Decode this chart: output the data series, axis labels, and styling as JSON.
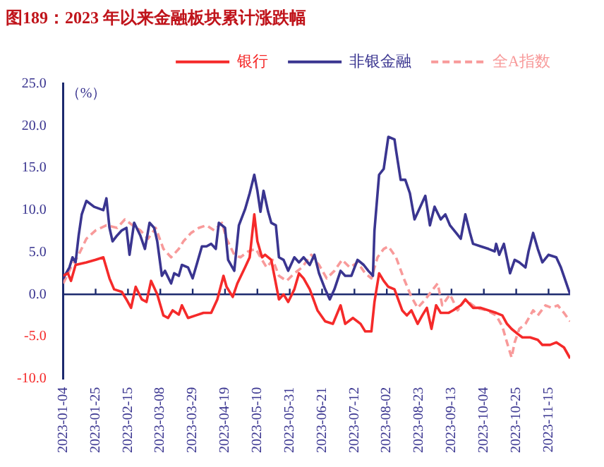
{
  "chart_data": {
    "type": "line",
    "title": "图189：2023 年以来金融板块累计涨跌幅",
    "ylabel": "（%）",
    "xlim": [
      "2023-01-04",
      "2023-11-29"
    ],
    "xticks": [
      "2023-01-04",
      "2023-01-25",
      "2023-02-15",
      "2023-03-08",
      "2023-03-29",
      "2023-04-19",
      "2023-05-10",
      "2023-05-31",
      "2023-06-21",
      "2023-07-12",
      "2023-08-02",
      "2023-08-23",
      "2023-09-13",
      "2023-10-04",
      "2023-10-25",
      "2023-11-15"
    ],
    "ylim": [
      -10,
      25
    ],
    "yticks": [
      {
        "value": -10,
        "label": "-10.0"
      },
      {
        "value": -5,
        "label": "-5.0"
      },
      {
        "value": 0,
        "label": "0.0"
      },
      {
        "value": 5,
        "label": "5.0"
      },
      {
        "value": 10,
        "label": "10.0"
      },
      {
        "value": 15,
        "label": "15.0"
      },
      {
        "value": 20,
        "label": "20.0"
      },
      {
        "value": 25,
        "label": "25.0"
      }
    ],
    "grid": false,
    "legend": "top",
    "marker": "none",
    "ref_lines": [
      {
        "axis": "y",
        "value": 0,
        "color": "#1c2a6e"
      }
    ],
    "series": [
      {
        "name": "银行",
        "color": "#f52a2a",
        "line_style": "solid",
        "x": [
          "2023-01-04",
          "2023-01-07",
          "2023-01-09",
          "2023-01-12",
          "2023-01-19",
          "2023-01-25",
          "2023-01-30",
          "2023-02-03",
          "2023-02-06",
          "2023-02-11",
          "2023-02-14",
          "2023-02-17",
          "2023-02-20",
          "2023-02-24",
          "2023-02-27",
          "2023-03-02",
          "2023-03-06",
          "2023-03-10",
          "2023-03-13",
          "2023-03-16",
          "2023-03-20",
          "2023-03-22",
          "2023-03-26",
          "2023-03-31",
          "2023-04-05",
          "2023-04-10",
          "2023-04-14",
          "2023-04-18",
          "2023-04-20",
          "2023-04-24",
          "2023-04-27",
          "2023-05-02",
          "2023-05-05",
          "2023-05-08",
          "2023-05-10",
          "2023-05-13",
          "2023-05-15",
          "2023-05-19",
          "2023-05-24",
          "2023-05-27",
          "2023-05-30",
          "2023-06-03",
          "2023-06-06",
          "2023-06-09",
          "2023-06-13",
          "2023-06-18",
          "2023-06-23",
          "2023-06-28",
          "2023-07-03",
          "2023-07-06",
          "2023-07-11",
          "2023-07-16",
          "2023-07-19",
          "2023-07-23",
          "2023-07-25",
          "2023-07-28",
          "2023-07-31",
          "2023-08-03",
          "2023-08-07",
          "2023-08-12",
          "2023-08-15",
          "2023-08-18",
          "2023-08-22",
          "2023-08-25",
          "2023-08-28",
          "2023-08-31",
          "2023-09-03",
          "2023-09-06",
          "2023-09-11",
          "2023-09-14",
          "2023-09-19",
          "2023-09-22",
          "2023-09-27",
          "2023-10-02",
          "2023-10-07",
          "2023-10-12",
          "2023-10-16",
          "2023-10-19",
          "2023-10-22",
          "2023-10-26",
          "2023-10-29",
          "2023-11-03",
          "2023-11-08",
          "2023-11-11",
          "2023-11-16",
          "2023-11-20",
          "2023-11-25",
          "2023-11-29"
        ],
        "values": [
          2.2,
          2.5,
          1.6,
          3.5,
          3.8,
          4.1,
          4.4,
          1.9,
          0.6,
          0.3,
          -0.6,
          -1.6,
          0.9,
          -0.6,
          -0.9,
          1.6,
          0.0,
          -2.5,
          -2.8,
          -1.9,
          -2.4,
          -1.3,
          -2.8,
          -2.5,
          -2.2,
          -2.2,
          -0.6,
          2.2,
          0.9,
          -0.3,
          1.3,
          3.2,
          4.4,
          9.5,
          6.3,
          4.4,
          4.7,
          4.1,
          -0.6,
          0.0,
          -0.9,
          0.6,
          2.5,
          1.9,
          0.6,
          -1.9,
          -3.2,
          -3.5,
          -1.3,
          -3.5,
          -2.8,
          -3.5,
          -4.4,
          -4.4,
          -0.9,
          2.5,
          1.6,
          0.9,
          0.6,
          -1.9,
          -2.5,
          -1.9,
          -3.5,
          -2.5,
          -1.6,
          -4.1,
          -1.3,
          -2.2,
          -2.2,
          -1.9,
          -1.3,
          -0.6,
          -1.6,
          -1.6,
          -1.9,
          -2.2,
          -2.5,
          -3.5,
          -4.1,
          -4.7,
          -5.1,
          -5.1,
          -5.4,
          -6.0,
          -6.0,
          -5.7,
          -6.3,
          -7.6
        ]
      },
      {
        "name": "非银金融",
        "color": "#3a3590",
        "line_style": "solid",
        "x": [
          "2023-01-04",
          "2023-01-08",
          "2023-01-10",
          "2023-01-12",
          "2023-01-14",
          "2023-01-16",
          "2023-01-19",
          "2023-01-24",
          "2023-01-30",
          "2023-02-01",
          "2023-02-03",
          "2023-02-05",
          "2023-02-08",
          "2023-02-11",
          "2023-02-14",
          "2023-02-16",
          "2023-02-19",
          "2023-02-23",
          "2023-02-26",
          "2023-03-01",
          "2023-03-04",
          "2023-03-06",
          "2023-03-09",
          "2023-03-11",
          "2023-03-15",
          "2023-03-17",
          "2023-03-20",
          "2023-03-22",
          "2023-03-26",
          "2023-03-29",
          "2023-04-01",
          "2023-04-04",
          "2023-04-07",
          "2023-04-10",
          "2023-04-13",
          "2023-04-15",
          "2023-04-19",
          "2023-04-21",
          "2023-04-25",
          "2023-04-28",
          "2023-05-02",
          "2023-05-05",
          "2023-05-08",
          "2023-05-10",
          "2023-05-12",
          "2023-05-14",
          "2023-05-17",
          "2023-05-19",
          "2023-05-22",
          "2023-05-24",
          "2023-05-27",
          "2023-05-30",
          "2023-06-03",
          "2023-06-06",
          "2023-06-09",
          "2023-06-13",
          "2023-06-16",
          "2023-06-19",
          "2023-06-23",
          "2023-06-26",
          "2023-06-29",
          "2023-07-03",
          "2023-07-06",
          "2023-07-10",
          "2023-07-14",
          "2023-07-18",
          "2023-07-21",
          "2023-07-24",
          "2023-07-25",
          "2023-07-28",
          "2023-07-31",
          "2023-08-03",
          "2023-08-07",
          "2023-08-08",
          "2023-08-11",
          "2023-08-14",
          "2023-08-17",
          "2023-08-20",
          "2023-08-23",
          "2023-08-27",
          "2023-08-30",
          "2023-09-02",
          "2023-09-06",
          "2023-09-09",
          "2023-09-12",
          "2023-09-16",
          "2023-09-19",
          "2023-09-22",
          "2023-09-25",
          "2023-09-27",
          "2023-10-02",
          "2023-10-07",
          "2023-10-11",
          "2023-10-12",
          "2023-10-14",
          "2023-10-17",
          "2023-10-21",
          "2023-10-24",
          "2023-10-27",
          "2023-10-31",
          "2023-11-02",
          "2023-11-05",
          "2023-11-08",
          "2023-11-11",
          "2023-11-15",
          "2023-11-20",
          "2023-11-23",
          "2023-11-26",
          "2023-11-29"
        ],
        "values": [
          1.9,
          3.2,
          4.4,
          3.8,
          7.0,
          9.5,
          11.1,
          10.4,
          10.0,
          11.4,
          7.9,
          6.3,
          7.0,
          7.6,
          7.9,
          4.7,
          8.5,
          7.0,
          5.4,
          8.5,
          7.9,
          6.3,
          2.2,
          2.8,
          1.3,
          2.5,
          2.2,
          3.5,
          3.2,
          1.9,
          3.8,
          5.7,
          5.7,
          6.0,
          5.4,
          8.5,
          7.9,
          4.1,
          2.8,
          8.2,
          10.1,
          12.0,
          14.2,
          12.3,
          9.8,
          12.3,
          9.8,
          8.5,
          8.2,
          4.4,
          4.1,
          2.8,
          4.4,
          3.8,
          4.4,
          3.5,
          4.7,
          2.5,
          0.6,
          -0.6,
          0.6,
          2.8,
          2.2,
          2.2,
          4.1,
          3.5,
          2.8,
          2.2,
          7.6,
          14.2,
          14.9,
          18.7,
          18.4,
          17.1,
          13.6,
          13.6,
          12.0,
          8.9,
          10.1,
          11.7,
          8.2,
          10.4,
          8.9,
          9.5,
          8.2,
          7.3,
          6.6,
          9.5,
          7.3,
          6.0,
          5.7,
          5.4,
          5.1,
          6.0,
          4.7,
          6.0,
          2.5,
          4.1,
          3.8,
          3.2,
          5.1,
          7.3,
          5.4,
          3.8,
          4.7,
          4.4,
          3.2,
          1.6,
          0.0
        ]
      },
      {
        "name": "全A指数",
        "color": "#f89a9a",
        "line_style": "dashed",
        "x": [
          "2023-01-04",
          "2023-01-09",
          "2023-01-14",
          "2023-01-19",
          "2023-01-25",
          "2023-02-01",
          "2023-02-08",
          "2023-02-13",
          "2023-02-18",
          "2023-02-23",
          "2023-02-28",
          "2023-03-05",
          "2023-03-10",
          "2023-03-15",
          "2023-03-20",
          "2023-03-23",
          "2023-03-28",
          "2023-04-02",
          "2023-04-07",
          "2023-04-12",
          "2023-04-17",
          "2023-04-20",
          "2023-04-25",
          "2023-04-29",
          "2023-05-04",
          "2023-05-09",
          "2023-05-12",
          "2023-05-16",
          "2023-05-20",
          "2023-05-24",
          "2023-05-29",
          "2023-06-03",
          "2023-06-08",
          "2023-06-14",
          "2023-06-19",
          "2023-06-24",
          "2023-06-29",
          "2023-07-04",
          "2023-07-09",
          "2023-07-14",
          "2023-07-19",
          "2023-07-23",
          "2023-07-27",
          "2023-07-31",
          "2023-08-03",
          "2023-08-08",
          "2023-08-13",
          "2023-08-18",
          "2023-08-22",
          "2023-08-27",
          "2023-09-01",
          "2023-09-04",
          "2023-09-07",
          "2023-09-12",
          "2023-09-17",
          "2023-09-22",
          "2023-09-29",
          "2023-10-06",
          "2023-10-12",
          "2023-10-16",
          "2023-10-19",
          "2023-10-22",
          "2023-10-24",
          "2023-10-27",
          "2023-10-31",
          "2023-11-05",
          "2023-11-08",
          "2023-11-13",
          "2023-11-17",
          "2023-11-21",
          "2023-11-25",
          "2023-11-29"
        ],
        "values": [
          1.3,
          3.2,
          4.7,
          6.6,
          7.6,
          8.2,
          7.9,
          8.9,
          8.2,
          7.6,
          6.6,
          7.9,
          5.4,
          4.4,
          5.4,
          6.3,
          7.3,
          7.9,
          8.2,
          7.6,
          8.5,
          6.6,
          4.7,
          4.4,
          5.1,
          5.4,
          4.4,
          3.2,
          4.1,
          2.2,
          1.6,
          2.5,
          3.2,
          4.7,
          3.5,
          1.9,
          2.8,
          4.1,
          3.2,
          3.8,
          2.5,
          1.9,
          4.4,
          5.4,
          5.7,
          4.4,
          1.9,
          -0.3,
          -1.6,
          -0.6,
          0.6,
          1.3,
          -1.3,
          0.0,
          -1.9,
          -0.6,
          -1.6,
          -1.9,
          -2.5,
          -3.8,
          -5.7,
          -7.5,
          -5.7,
          -4.1,
          -3.5,
          -1.9,
          -2.5,
          -1.3,
          -1.6,
          -1.3,
          -2.2,
          -3.2
        ]
      }
    ]
  }
}
